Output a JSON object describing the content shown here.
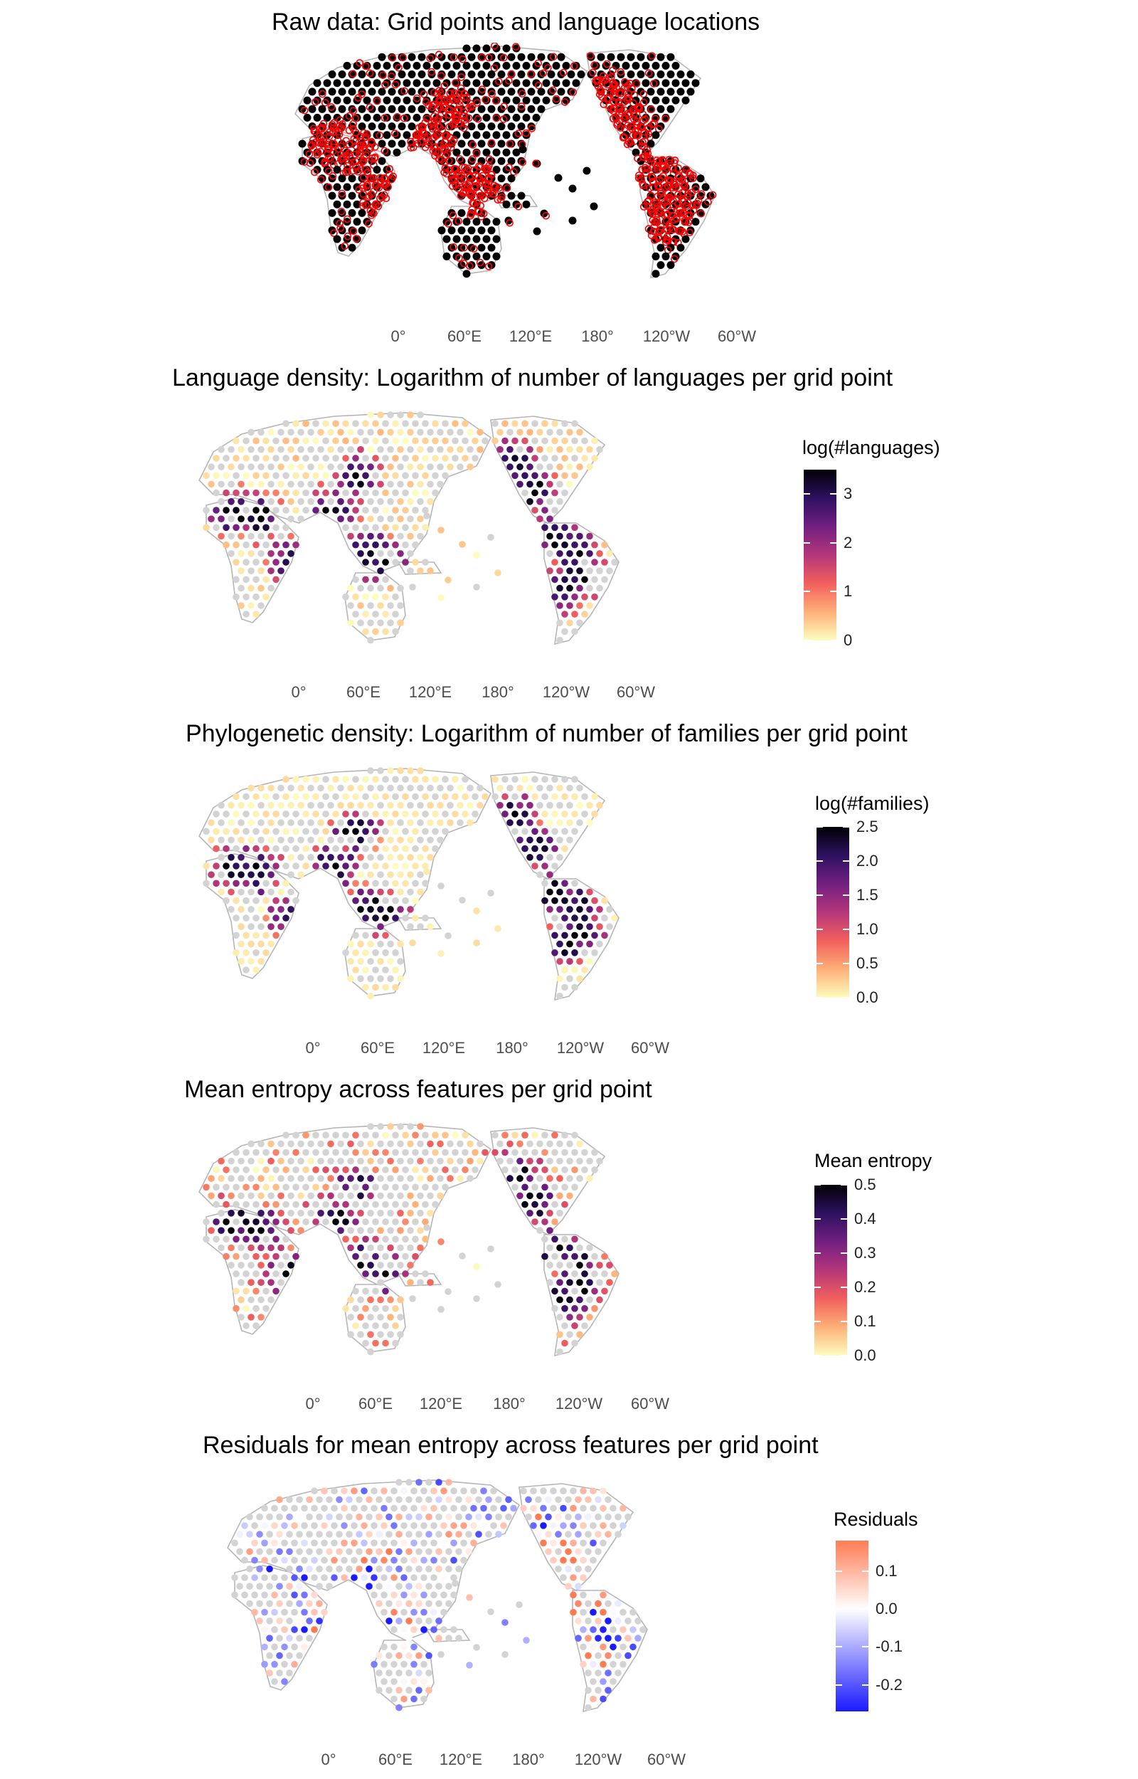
{
  "panels": [
    {
      "id": "raw",
      "title": "Raw data: Grid points and language locations",
      "lon_labels": [
        "0°",
        "60°E",
        "120°E",
        "180°",
        "120°W",
        "60°W"
      ],
      "dot_style": "grid points black, language locations red open circles"
    },
    {
      "id": "langdens",
      "title": "Language density: Logarithm of number of languages per grid point",
      "lon_labels": [
        "0°",
        "60°E",
        "120°E",
        "180°",
        "120°W",
        "60°W"
      ],
      "legend": {
        "title": "log(#languages)",
        "ticks": [
          "3",
          "2",
          "1",
          "0"
        ],
        "range": [
          0,
          3.5
        ],
        "tick_values": [
          3,
          2,
          1,
          0
        ]
      },
      "palette": "magma"
    },
    {
      "id": "phylo",
      "title": "Phylogenetic density: Logarithm of number of families per grid point",
      "lon_labels": [
        "0°",
        "60°E",
        "120°E",
        "180°",
        "120°W",
        "60°W"
      ],
      "legend": {
        "title": "log(#families)",
        "ticks": [
          "2.5",
          "2.0",
          "1.5",
          "1.0",
          "0.5",
          "0.0"
        ],
        "range": [
          0,
          2.5
        ],
        "tick_values": [
          2.5,
          2.0,
          1.5,
          1.0,
          0.5,
          0.0
        ]
      },
      "palette": "magma"
    },
    {
      "id": "entropy",
      "title": "Mean entropy across features per grid point",
      "lon_labels": [
        "0°",
        "60°E",
        "120°E",
        "180°",
        "120°W",
        "60°W"
      ],
      "legend": {
        "title": "Mean entropy",
        "ticks": [
          "0.5",
          "0.4",
          "0.3",
          "0.2",
          "0.1",
          "0.0"
        ],
        "range": [
          0,
          0.5
        ],
        "tick_values": [
          0.5,
          0.4,
          0.3,
          0.2,
          0.1,
          0.0
        ]
      },
      "palette": "magma"
    },
    {
      "id": "resid",
      "title": "Residuals for mean entropy across features per grid point",
      "lon_labels": [
        "0°",
        "60°E",
        "120°E",
        "180°",
        "120°W",
        "60°W"
      ],
      "legend": {
        "title": "Residuals",
        "ticks": [
          "0.1",
          "0.0",
          "-0.1",
          "-0.2"
        ],
        "range": [
          -0.27,
          0.18
        ],
        "tick_values": [
          0.1,
          0.0,
          -0.1,
          -0.2
        ]
      },
      "palette": "diverging blue-white-red"
    }
  ],
  "colors": {
    "grid_dot": "#d3d3d3",
    "raw_dot": "#000000",
    "raw_ring": "#ff0000",
    "coast": "#b5b5b5",
    "magma": [
      "#fcfdbf",
      "#feb078",
      "#f1605d",
      "#b5367a",
      "#721f81",
      "#2d1160",
      "#000004"
    ],
    "diverging": [
      "#1a1aff",
      "#ffffff",
      "#ff7b54"
    ]
  }
}
